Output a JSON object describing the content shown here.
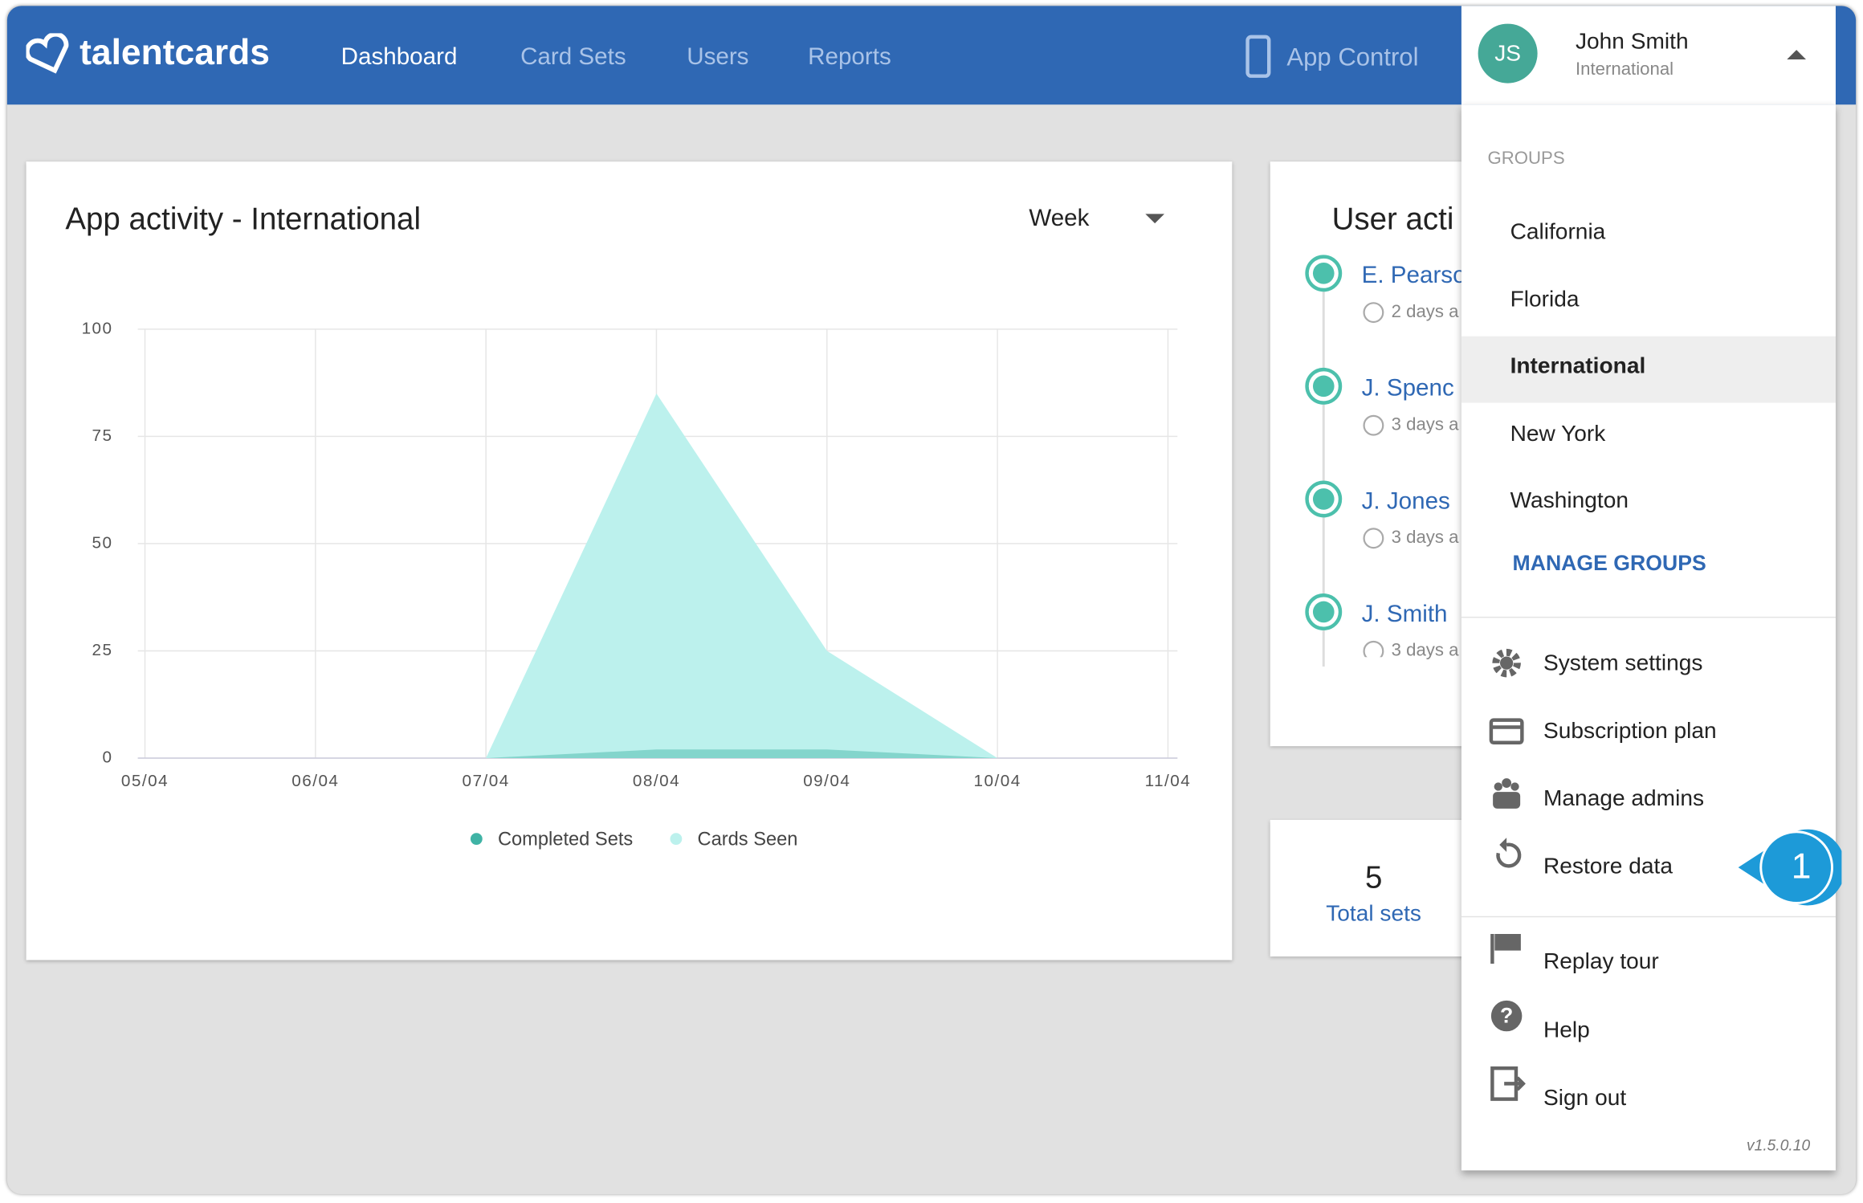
{
  "header": {
    "logo": "talentcards",
    "nav": [
      "Dashboard",
      "Card Sets",
      "Users",
      "Reports"
    ],
    "app_control": "App Control",
    "user": {
      "initials": "JS",
      "name": "John Smith",
      "group": "International"
    }
  },
  "chart_card": {
    "title": "App activity - International",
    "period": "Week"
  },
  "chart_data": {
    "type": "area",
    "categories": [
      "05/04",
      "06/04",
      "07/04",
      "08/04",
      "09/04",
      "10/04",
      "11/04"
    ],
    "series": [
      {
        "name": "Cards Seen",
        "color": "#bcf1ed",
        "values": [
          0,
          0,
          0,
          85,
          25,
          0,
          0
        ]
      },
      {
        "name": "Completed Sets",
        "color": "#3fb3a5",
        "values": [
          0,
          0,
          0,
          2,
          2,
          0,
          0
        ]
      }
    ],
    "ylim": [
      0,
      100
    ],
    "yticks": [
      0,
      25,
      50,
      75,
      100
    ],
    "grid": true
  },
  "user_activity": {
    "title": "User acti",
    "items": [
      {
        "name": "E. Pearso",
        "time": "2 days a"
      },
      {
        "name": "J. Spenc",
        "time": "3 days a"
      },
      {
        "name": "J. Jones",
        "time": "3 days a"
      },
      {
        "name": "J. Smith",
        "time": "3 days a"
      }
    ]
  },
  "stats": {
    "value": 5,
    "label": "Total sets"
  },
  "menu": {
    "groups_heading": "GROUPS",
    "groups": [
      "California",
      "Florida",
      "International",
      "New York",
      "Washington"
    ],
    "selected_group": 2,
    "manage_groups": "MANAGE GROUPS",
    "settings_items": [
      "System settings",
      "Subscription plan",
      "Manage admins",
      "Restore data"
    ],
    "other_items": [
      "Replay tour",
      "Help",
      "Sign out"
    ],
    "version": "v1.5.0.10"
  },
  "callout": {
    "label": 1
  }
}
